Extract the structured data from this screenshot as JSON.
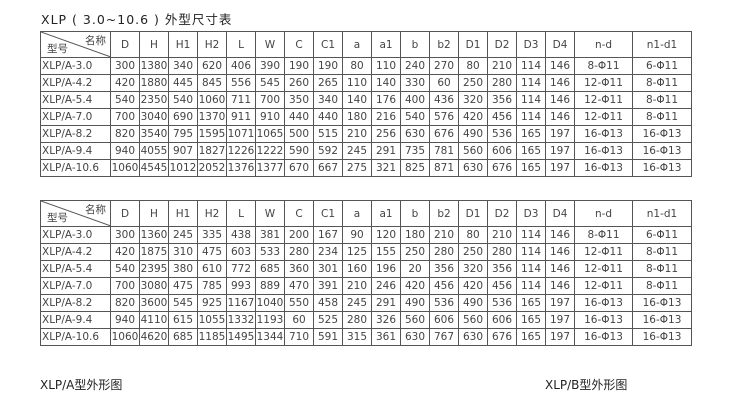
{
  "title": "XLP ( 3.0~10.6 ) 外型尺寸表",
  "corner": {
    "name": "名称",
    "model": "型号"
  },
  "columns": [
    "D",
    "H",
    "H1",
    "H2",
    "L",
    "W",
    "C",
    "C1",
    "a",
    "a1",
    "b",
    "b2",
    "D1",
    "D2",
    "D3",
    "D4",
    "n-d",
    "n1-d1"
  ],
  "table1": [
    [
      "XLP/A-3.0",
      "300",
      "1380",
      "340",
      "620",
      "406",
      "390",
      "190",
      "190",
      "80",
      "110",
      "240",
      "270",
      "80",
      "210",
      "114",
      "146",
      "8-Φ11",
      "6-Φ11"
    ],
    [
      "XLP/A-4.2",
      "420",
      "1880",
      "445",
      "845",
      "556",
      "545",
      "260",
      "265",
      "110",
      "140",
      "330",
      "60",
      "250",
      "280",
      "114",
      "146",
      "12-Φ11",
      "8-Φ11"
    ],
    [
      "XLP/A-5.4",
      "540",
      "2350",
      "540",
      "1060",
      "711",
      "700",
      "350",
      "340",
      "140",
      "176",
      "400",
      "436",
      "320",
      "356",
      "114",
      "146",
      "12-Φ11",
      "8-Φ11"
    ],
    [
      "XLP/A-7.0",
      "700",
      "3040",
      "690",
      "1370",
      "911",
      "910",
      "440",
      "440",
      "180",
      "216",
      "540",
      "576",
      "420",
      "456",
      "114",
      "146",
      "12-Φ11",
      "8-Φ11"
    ],
    [
      "XLP/A-8.2",
      "820",
      "3540",
      "795",
      "1595",
      "1071",
      "1065",
      "500",
      "515",
      "210",
      "256",
      "630",
      "676",
      "490",
      "536",
      "165",
      "197",
      "16-Φ13",
      "16-Φ13"
    ],
    [
      "XLP/A-9.4",
      "940",
      "4055",
      "907",
      "1827",
      "1226",
      "1222",
      "590",
      "592",
      "245",
      "291",
      "735",
      "781",
      "560",
      "606",
      "165",
      "197",
      "16-Φ13",
      "16-Φ13"
    ],
    [
      "XLP/A-10.6",
      "1060",
      "4545",
      "1012",
      "2052",
      "1376",
      "1377",
      "670",
      "667",
      "275",
      "321",
      "825",
      "871",
      "630",
      "676",
      "165",
      "197",
      "16-Φ13",
      "16-Φ13"
    ]
  ],
  "table2": [
    [
      "XLP/A-3.0",
      "300",
      "1360",
      "245",
      "335",
      "438",
      "381",
      "200",
      "167",
      "90",
      "120",
      "180",
      "210",
      "80",
      "210",
      "114",
      "146",
      "8-Φ11",
      "6-Φ11"
    ],
    [
      "XLP/A-4.2",
      "420",
      "1875",
      "310",
      "475",
      "603",
      "533",
      "280",
      "234",
      "125",
      "155",
      "250",
      "280",
      "250",
      "280",
      "114",
      "146",
      "12-Φ11",
      "8-Φ11"
    ],
    [
      "XLP/A-5.4",
      "540",
      "2395",
      "380",
      "610",
      "772",
      "685",
      "360",
      "301",
      "160",
      "196",
      "20",
      "356",
      "320",
      "356",
      "114",
      "146",
      "12-Φ11",
      "8-Φ11"
    ],
    [
      "XLP/A-7.0",
      "700",
      "3080",
      "475",
      "785",
      "993",
      "889",
      "470",
      "391",
      "210",
      "246",
      "420",
      "456",
      "420",
      "456",
      "114",
      "146",
      "12-Φ11",
      "8-Φ11"
    ],
    [
      "XLP/A-8.2",
      "820",
      "3600",
      "545",
      "925",
      "1167",
      "1040",
      "550",
      "458",
      "245",
      "291",
      "490",
      "536",
      "490",
      "536",
      "165",
      "197",
      "16-Φ13",
      "16-Φ13"
    ],
    [
      "XLP/A-9.4",
      "940",
      "4110",
      "615",
      "1055",
      "1332",
      "1193",
      "60",
      "525",
      "280",
      "326",
      "560",
      "606",
      "560",
      "606",
      "165",
      "197",
      "16-Φ13",
      "16-Φ13"
    ],
    [
      "XLP/A-10.6",
      "1060",
      "4620",
      "685",
      "1185",
      "1495",
      "1344",
      "710",
      "591",
      "315",
      "361",
      "630",
      "767",
      "630",
      "676",
      "165",
      "197",
      "16-Φ13",
      "16-Φ13"
    ]
  ],
  "captions": {
    "a": "XLP/A型外形图",
    "b": "XLP/B型外形图"
  }
}
